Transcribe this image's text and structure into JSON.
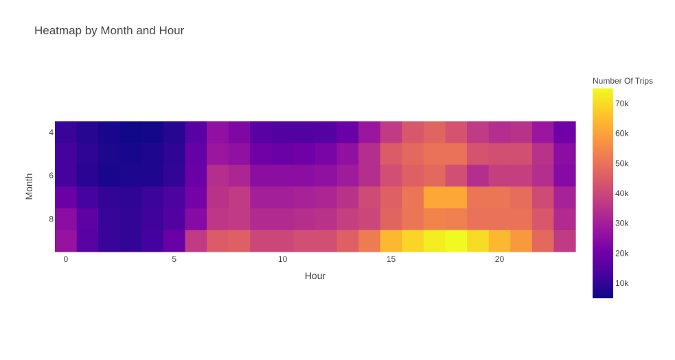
{
  "chart_data": {
    "type": "heatmap",
    "title": "Heatmap by Month and Hour",
    "xlabel": "Hour",
    "ylabel": "Month",
    "x": [
      0,
      1,
      2,
      3,
      4,
      5,
      6,
      7,
      8,
      9,
      10,
      11,
      12,
      13,
      14,
      15,
      16,
      17,
      18,
      19,
      20,
      21,
      22,
      23
    ],
    "y": [
      4,
      5,
      6,
      7,
      8,
      9
    ],
    "x_ticks": [
      0,
      5,
      10,
      15,
      20
    ],
    "y_ticks": [
      4,
      6,
      8
    ],
    "colorbar": {
      "title": "Number Of Trips",
      "min": 5000,
      "max": 75000,
      "ticks": [
        10000,
        20000,
        30000,
        40000,
        50000,
        60000,
        70000
      ],
      "tick_labels": [
        "10k",
        "20k",
        "30k",
        "40k",
        "50k",
        "60k",
        "70k"
      ]
    },
    "colorscale": [
      "#0d0887",
      "#46039f",
      "#7201a8",
      "#9c179e",
      "#bd3786",
      "#d8576b",
      "#ed7953",
      "#fb9f3a",
      "#fdca26",
      "#f0f921"
    ],
    "z": [
      [
        11000,
        8500,
        6500,
        5500,
        6000,
        8500,
        16000,
        26000,
        23000,
        16000,
        15000,
        15000,
        15500,
        19000,
        28000,
        37000,
        44000,
        47000,
        43000,
        37000,
        34000,
        35000,
        28000,
        20000
      ],
      [
        12500,
        9500,
        7000,
        6500,
        7500,
        9500,
        18000,
        28000,
        26000,
        20000,
        19000,
        20000,
        22000,
        26000,
        34000,
        45000,
        48000,
        50000,
        50000,
        43000,
        42000,
        42000,
        35000,
        25000
      ],
      [
        12500,
        9000,
        6500,
        7500,
        7500,
        10000,
        19000,
        34000,
        32000,
        25000,
        25000,
        25000,
        26000,
        29000,
        34000,
        42000,
        46000,
        48000,
        42000,
        34000,
        38000,
        38000,
        34000,
        24000
      ],
      [
        19000,
        13000,
        10000,
        9500,
        11500,
        14000,
        21000,
        35000,
        37000,
        30000,
        30000,
        31000,
        32000,
        35000,
        41000,
        46000,
        51000,
        61000,
        61000,
        51000,
        51000,
        49000,
        41000,
        31000
      ],
      [
        25000,
        17000,
        11000,
        10000,
        12000,
        15000,
        24000,
        36000,
        37000,
        33000,
        33000,
        34000,
        35000,
        38000,
        40000,
        47000,
        51000,
        54000,
        53000,
        50000,
        50000,
        50000,
        44000,
        33000
      ],
      [
        27000,
        16000,
        11000,
        10000,
        12500,
        19000,
        37000,
        45000,
        46000,
        40000,
        40000,
        42000,
        42000,
        46000,
        52000,
        64000,
        69000,
        73000,
        75000,
        70000,
        64000,
        58000,
        48000,
        37000
      ]
    ]
  }
}
